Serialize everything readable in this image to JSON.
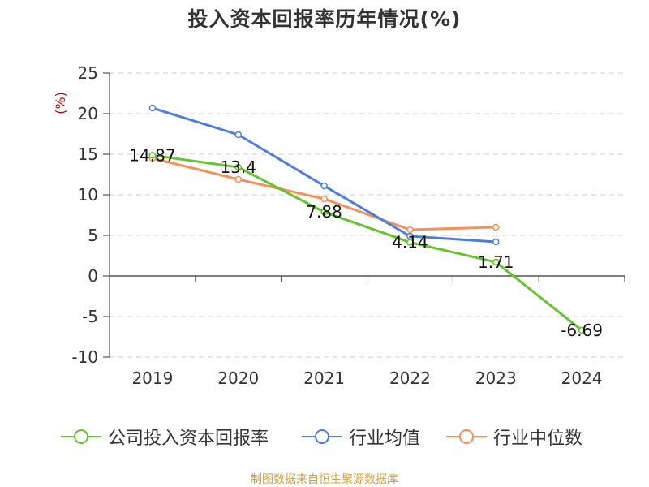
{
  "title": "投入资本回报率历年情况(%)",
  "source_text": "制图数据来自恒生聚源数据库",
  "colors": {
    "company": "#66c22e",
    "industry_avg": "#4f7ddb",
    "industry_median": "#f5905a",
    "ylabel": "#cc0000",
    "grid": "#cccccc",
    "axis": "#333333"
  },
  "chart_data": {
    "type": "line",
    "title": "投入资本回报率历年情况(%)",
    "ylabel": "(%)",
    "xlabel": "",
    "categories": [
      "2019",
      "2020",
      "2021",
      "2022",
      "2023",
      "2024"
    ],
    "yticks": [
      "25",
      "20",
      "15",
      "10",
      "5",
      "0",
      "-5",
      "-10"
    ],
    "ylim": [
      -10,
      25
    ],
    "grid": true,
    "legend_position": "bottom",
    "series": [
      {
        "name": "公司投入资本回报率",
        "color": "#66c22e",
        "values": [
          14.87,
          13.4,
          7.88,
          4.14,
          1.71,
          -6.69
        ],
        "labels": [
          "14.87",
          "13.4",
          "7.88",
          "4.14",
          "1.71",
          "-6.69"
        ]
      },
      {
        "name": "行业均值",
        "color": "#4f7ddb",
        "values": [
          20.7,
          17.4,
          11.1,
          4.9,
          4.2,
          null
        ]
      },
      {
        "name": "行业中位数",
        "color": "#f5905a",
        "values": [
          14.5,
          11.9,
          9.5,
          5.7,
          6.0,
          null
        ]
      }
    ]
  }
}
